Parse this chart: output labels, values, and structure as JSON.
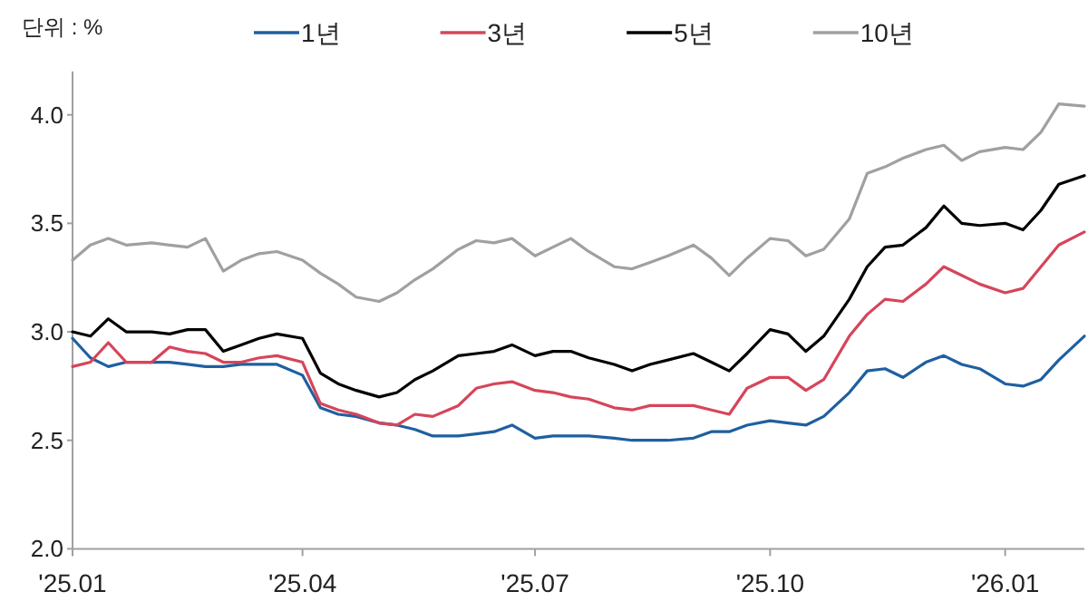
{
  "chart_data": {
    "type": "line",
    "annotations": [
      "단위 : %"
    ],
    "x": [
      "2025-01-01",
      "2025-01-08",
      "2025-01-15",
      "2025-01-22",
      "2025-02-01",
      "2025-02-08",
      "2025-02-15",
      "2025-02-22",
      "2025-03-01",
      "2025-03-08",
      "2025-03-15",
      "2025-03-22",
      "2025-04-01",
      "2025-04-08",
      "2025-04-15",
      "2025-04-22",
      "2025-05-01",
      "2025-05-08",
      "2025-05-15",
      "2025-05-22",
      "2025-06-01",
      "2025-06-08",
      "2025-06-15",
      "2025-06-22",
      "2025-07-01",
      "2025-07-08",
      "2025-07-15",
      "2025-07-22",
      "2025-08-01",
      "2025-08-08",
      "2025-08-15",
      "2025-08-22",
      "2025-09-01",
      "2025-09-08",
      "2025-09-15",
      "2025-09-22",
      "2025-10-01",
      "2025-10-08",
      "2025-10-15",
      "2025-10-22",
      "2025-11-01",
      "2025-11-08",
      "2025-11-15",
      "2025-11-22",
      "2025-12-01",
      "2025-12-08",
      "2025-12-15",
      "2025-12-22",
      "2026-01-01",
      "2026-01-08",
      "2026-01-15",
      "2026-01-22",
      "2026-02-01"
    ],
    "series": [
      {
        "name": "1년",
        "color": "#1f5fa0",
        "values": [
          2.97,
          2.88,
          2.84,
          2.86,
          2.86,
          2.86,
          2.85,
          2.84,
          2.84,
          2.85,
          2.85,
          2.85,
          2.8,
          2.65,
          2.62,
          2.61,
          2.58,
          2.57,
          2.55,
          2.52,
          2.52,
          2.53,
          2.54,
          2.57,
          2.51,
          2.52,
          2.52,
          2.52,
          2.51,
          2.5,
          2.5,
          2.5,
          2.51,
          2.54,
          2.54,
          2.57,
          2.59,
          2.58,
          2.57,
          2.61,
          2.72,
          2.82,
          2.83,
          2.79,
          2.86,
          2.89,
          2.85,
          2.83,
          2.76,
          2.75,
          2.78,
          2.87,
          2.98
        ]
      },
      {
        "name": "3년",
        "color": "#d6455a",
        "values": [
          2.84,
          2.86,
          2.95,
          2.86,
          2.86,
          2.93,
          2.91,
          2.9,
          2.86,
          2.86,
          2.88,
          2.89,
          2.86,
          2.67,
          2.64,
          2.62,
          2.58,
          2.57,
          2.62,
          2.61,
          2.66,
          2.74,
          2.76,
          2.77,
          2.73,
          2.72,
          2.7,
          2.69,
          2.65,
          2.64,
          2.66,
          2.66,
          2.66,
          2.64,
          2.62,
          2.74,
          2.79,
          2.79,
          2.73,
          2.78,
          2.98,
          3.08,
          3.15,
          3.14,
          3.22,
          3.3,
          3.26,
          3.22,
          3.18,
          3.2,
          3.3,
          3.4,
          3.46
        ]
      },
      {
        "name": "5년",
        "color": "#000000",
        "values": [
          3.0,
          2.98,
          3.06,
          3.0,
          3.0,
          2.99,
          3.01,
          3.01,
          2.91,
          2.94,
          2.97,
          2.99,
          2.97,
          2.81,
          2.76,
          2.73,
          2.7,
          2.72,
          2.78,
          2.82,
          2.89,
          2.9,
          2.91,
          2.94,
          2.89,
          2.91,
          2.91,
          2.88,
          2.85,
          2.82,
          2.85,
          2.87,
          2.9,
          2.86,
          2.82,
          2.9,
          3.01,
          2.99,
          2.91,
          2.98,
          3.15,
          3.3,
          3.39,
          3.4,
          3.48,
          3.58,
          3.5,
          3.49,
          3.5,
          3.47,
          3.56,
          3.68,
          3.72
        ]
      },
      {
        "name": "10년",
        "color": "#a0a0a0",
        "values": [
          3.33,
          3.4,
          3.43,
          3.4,
          3.41,
          3.4,
          3.39,
          3.43,
          3.28,
          3.33,
          3.36,
          3.37,
          3.33,
          3.27,
          3.22,
          3.16,
          3.14,
          3.18,
          3.24,
          3.29,
          3.38,
          3.42,
          3.41,
          3.43,
          3.35,
          3.39,
          3.43,
          3.37,
          3.3,
          3.29,
          3.32,
          3.35,
          3.4,
          3.34,
          3.26,
          3.34,
          3.43,
          3.42,
          3.35,
          3.38,
          3.52,
          3.73,
          3.76,
          3.8,
          3.84,
          3.86,
          3.79,
          3.83,
          3.85,
          3.84,
          3.92,
          4.05,
          4.04
        ]
      }
    ],
    "xlim": [
      "2025-01-01",
      "2026-02-01"
    ],
    "xticks": [
      {
        "value": "2025-01-01",
        "label": "'25.01"
      },
      {
        "value": "2025-04-01",
        "label": "'25.04"
      },
      {
        "value": "2025-07-01",
        "label": "'25.07"
      },
      {
        "value": "2025-10-01",
        "label": "'25.10"
      },
      {
        "value": "2026-01-01",
        "label": "'26.01"
      }
    ],
    "ylim": [
      2,
      4.2
    ],
    "yticks": [
      {
        "value": 2,
        "label": "2.0"
      },
      {
        "value": 2.5,
        "label": "2.5"
      },
      {
        "value": 3,
        "label": "3.0"
      },
      {
        "value": 3.5,
        "label": "3.5"
      },
      {
        "value": 4,
        "label": "4.0"
      }
    ],
    "grid": false,
    "legend": "top",
    "line_style": "solid",
    "marker": "none"
  }
}
